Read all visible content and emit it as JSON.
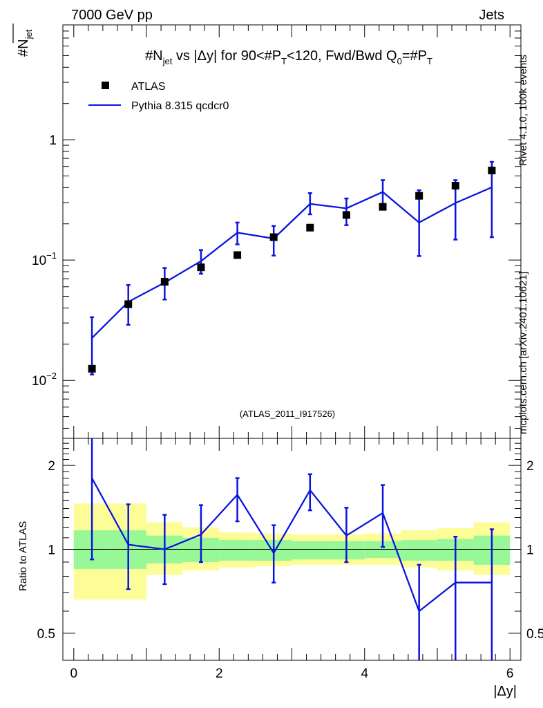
{
  "header": {
    "left": "7000 GeV pp",
    "right": "Jets",
    "side_top": "Rivet 4.1.0,  100k events",
    "side_bottom": "mcplots.cern.ch [arXiv:2401.10621]",
    "analysis_id": "(ATLAS_2011_I917526)"
  },
  "title_parts": {
    "a": "#N",
    "a_sub": "jet",
    "b": " vs |Δy| for 90<#P",
    "b_sub": "T",
    "c": "<120, Fwd/Bwd Q",
    "c_sub": "0",
    "d": "=#P",
    "d_sub": "T"
  },
  "ylabel_parts": {
    "main": "#N",
    "sub": "jet"
  },
  "legend": {
    "data": "ATLAS",
    "mc": "Pythia 8.315 qcdcr0"
  },
  "colors": {
    "mc": "#0a14e0",
    "data": "#000000",
    "band_inner": "#98f898",
    "band_outer": "#fdfd98"
  },
  "chart_data": [
    {
      "type": "scatter",
      "title": "#N_jet vs |Δy| for 90<#P_T<120, Fwd/Bwd Q_0=#P_T",
      "xlabel": "|Δy|",
      "ylabel": "#N_jet",
      "yscale": "log",
      "xlim": [
        -0.15,
        6.15
      ],
      "ylim": [
        0.0033,
        9
      ],
      "x_ticks": [
        "0",
        "2",
        "4",
        "6"
      ],
      "y_ticks": [
        {
          "value": 0.01,
          "base": "10",
          "exp": "−2"
        },
        {
          "value": 0.1,
          "base": "10",
          "exp": "−1"
        },
        {
          "value": 1,
          "base": "1",
          "exp": ""
        }
      ],
      "x_edges": [
        0,
        0.5,
        1,
        1.5,
        2,
        2.5,
        3,
        3.5,
        4,
        4.5,
        5,
        5.5,
        6
      ],
      "series": [
        {
          "name": "ATLAS",
          "x": [
            0.25,
            0.75,
            1.25,
            1.75,
            2.25,
            2.75,
            3.25,
            3.75,
            4.25,
            4.75,
            5.25,
            5.75
          ],
          "y": [
            0.0125,
            0.043,
            0.066,
            0.087,
            0.11,
            0.155,
            0.186,
            0.237,
            0.277,
            0.342,
            0.415,
            0.555
          ]
        },
        {
          "name": "Pythia 8.315 qcdcr0",
          "x": [
            0.25,
            0.75,
            1.25,
            1.75,
            2.25,
            2.75,
            3.25,
            3.75,
            4.25,
            4.75,
            5.25,
            5.75
          ],
          "y": [
            0.0225,
            0.045,
            0.065,
            0.098,
            0.169,
            0.151,
            0.293,
            0.269,
            0.368,
            0.205,
            0.298,
            0.402
          ],
          "err_low": [
            0.0112,
            0.029,
            0.047,
            0.077,
            0.135,
            0.109,
            0.24,
            0.195,
            0.286,
            0.108,
            0.148,
            0.155
          ],
          "err_high": [
            0.0335,
            0.062,
            0.086,
            0.121,
            0.205,
            0.192,
            0.36,
            0.325,
            0.462,
            0.38,
            0.462,
            0.655
          ]
        }
      ]
    },
    {
      "type": "line",
      "ylabel": "Ratio to ATLAS",
      "yscale": "log",
      "xlim": [
        -0.15,
        6.15
      ],
      "ylim": [
        0.4,
        2.5
      ],
      "x_ticks": [
        "0",
        "2",
        "4",
        "6"
      ],
      "y_ticks": [
        {
          "value": 0.5,
          "label": "0.5"
        },
        {
          "value": 1,
          "label": "1"
        },
        {
          "value": 2,
          "label": "2"
        }
      ],
      "xlabel": "|Δy|",
      "x": [
        0.25,
        0.75,
        1.25,
        1.75,
        2.25,
        2.75,
        3.25,
        3.75,
        4.25,
        4.75,
        5.25,
        5.75
      ],
      "ratio": [
        1.8,
        1.04,
        1.0,
        1.13,
        1.57,
        0.97,
        1.63,
        1.12,
        1.35,
        0.6,
        0.76,
        0.76
      ],
      "ratio_low": [
        0.92,
        0.72,
        0.75,
        0.9,
        1.26,
        0.76,
        1.38,
        0.9,
        1.02,
        0.3,
        0.3,
        0.3
      ],
      "ratio_high": [
        2.5,
        1.45,
        1.33,
        1.44,
        1.8,
        1.22,
        1.86,
        1.41,
        1.7,
        0.88,
        1.11,
        1.18
      ],
      "band_inner_low": [
        0.85,
        0.85,
        0.89,
        0.9,
        0.91,
        0.91,
        0.92,
        0.92,
        0.93,
        0.91,
        0.91,
        0.88
      ],
      "band_inner_high": [
        1.17,
        1.17,
        1.12,
        1.1,
        1.08,
        1.08,
        1.07,
        1.07,
        1.07,
        1.08,
        1.09,
        1.12
      ],
      "band_outer_low": [
        0.66,
        0.66,
        0.81,
        0.84,
        0.86,
        0.87,
        0.88,
        0.88,
        0.88,
        0.86,
        0.84,
        0.81
      ],
      "band_outer_high": [
        1.46,
        1.46,
        1.25,
        1.2,
        1.15,
        1.14,
        1.13,
        1.13,
        1.14,
        1.17,
        1.19,
        1.25
      ]
    }
  ]
}
